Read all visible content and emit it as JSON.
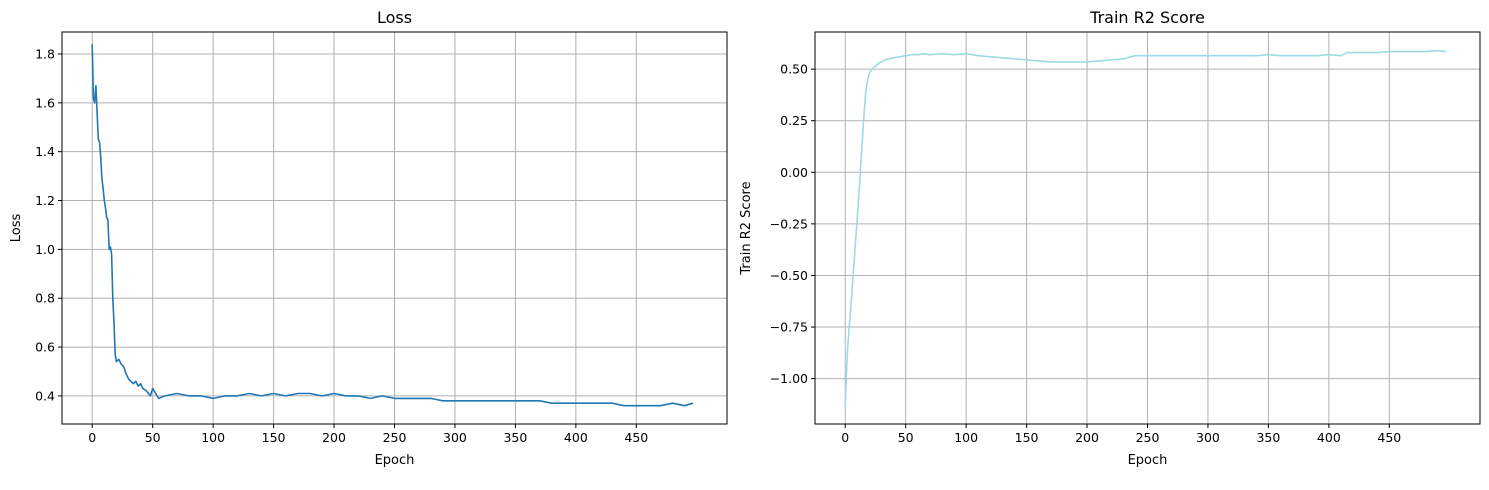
{
  "chart_data": [
    {
      "type": "line",
      "title": "Loss",
      "xlabel": "Epoch",
      "ylabel": "Loss",
      "xlim": [
        -25,
        525
      ],
      "ylim": [
        0.285,
        1.89
      ],
      "xticks": [
        0,
        50,
        100,
        150,
        200,
        250,
        300,
        350,
        400,
        450
      ],
      "yticks": [
        0.4,
        0.6,
        0.8,
        1.0,
        1.2,
        1.4,
        1.6,
        1.8
      ],
      "grid": true,
      "color": "#1f77b4",
      "series": [
        {
          "x": [
            0,
            1,
            2,
            3,
            4,
            5,
            6,
            7,
            8,
            9,
            10,
            11,
            12,
            13,
            14,
            15,
            16,
            17,
            18,
            19,
            20,
            22,
            24,
            26,
            28,
            30,
            32,
            34,
            36,
            38,
            40,
            42,
            45,
            48,
            50,
            55,
            60,
            70,
            80,
            90,
            100,
            110,
            120,
            130,
            140,
            150,
            160,
            170,
            180,
            190,
            200,
            210,
            220,
            230,
            240,
            250,
            260,
            270,
            280,
            290,
            300,
            310,
            320,
            330,
            340,
            350,
            360,
            370,
            380,
            390,
            400,
            410,
            420,
            430,
            440,
            450,
            460,
            470,
            480,
            490,
            497
          ],
          "y": [
            1.84,
            1.62,
            1.6,
            1.67,
            1.56,
            1.45,
            1.44,
            1.38,
            1.29,
            1.25,
            1.2,
            1.17,
            1.13,
            1.12,
            1.0,
            1.01,
            0.98,
            0.8,
            0.7,
            0.57,
            0.54,
            0.55,
            0.53,
            0.52,
            0.49,
            0.47,
            0.46,
            0.45,
            0.46,
            0.44,
            0.45,
            0.43,
            0.42,
            0.4,
            0.43,
            0.39,
            0.4,
            0.41,
            0.4,
            0.4,
            0.39,
            0.4,
            0.4,
            0.41,
            0.4,
            0.41,
            0.4,
            0.41,
            0.41,
            0.4,
            0.41,
            0.4,
            0.4,
            0.39,
            0.4,
            0.39,
            0.39,
            0.39,
            0.39,
            0.38,
            0.38,
            0.38,
            0.38,
            0.38,
            0.38,
            0.38,
            0.38,
            0.38,
            0.37,
            0.37,
            0.37,
            0.37,
            0.37,
            0.37,
            0.36,
            0.36,
            0.36,
            0.36,
            0.37,
            0.36,
            0.37
          ]
        }
      ]
    },
    {
      "type": "line",
      "title": "Train R2 Score",
      "xlabel": "Epoch",
      "ylabel": "Train R2 Score",
      "xlim": [
        -25,
        525
      ],
      "ylim": [
        -1.22,
        0.68
      ],
      "xticks": [
        0,
        50,
        100,
        150,
        200,
        250,
        300,
        350,
        400,
        450
      ],
      "yticks": [
        -1.0,
        -0.75,
        -0.5,
        -0.25,
        0.0,
        0.25,
        0.5
      ],
      "grid": true,
      "color": "#9edae5",
      "series": [
        {
          "x": [
            0,
            1,
            2,
            3,
            4,
            5,
            6,
            7,
            8,
            9,
            10,
            11,
            12,
            13,
            14,
            15,
            16,
            17,
            18,
            19,
            20,
            22,
            24,
            26,
            28,
            30,
            33,
            36,
            40,
            45,
            50,
            55,
            60,
            65,
            70,
            80,
            90,
            100,
            110,
            120,
            130,
            140,
            150,
            160,
            170,
            180,
            190,
            200,
            210,
            220,
            230,
            240,
            250,
            260,
            270,
            280,
            290,
            300,
            310,
            320,
            330,
            340,
            350,
            360,
            370,
            380,
            390,
            400,
            410,
            415,
            420,
            430,
            440,
            450,
            460,
            470,
            480,
            490,
            497
          ],
          "y": [
            -1.14,
            -0.98,
            -0.85,
            -0.77,
            -0.7,
            -0.62,
            -0.54,
            -0.46,
            -0.38,
            -0.3,
            -0.22,
            -0.13,
            -0.05,
            0.05,
            0.14,
            0.24,
            0.32,
            0.39,
            0.43,
            0.46,
            0.48,
            0.5,
            0.51,
            0.52,
            0.53,
            0.535,
            0.545,
            0.55,
            0.555,
            0.56,
            0.565,
            0.57,
            0.57,
            0.575,
            0.57,
            0.575,
            0.57,
            0.575,
            0.565,
            0.56,
            0.555,
            0.55,
            0.545,
            0.54,
            0.535,
            0.535,
            0.535,
            0.535,
            0.54,
            0.545,
            0.55,
            0.565,
            0.565,
            0.565,
            0.565,
            0.565,
            0.565,
            0.565,
            0.565,
            0.565,
            0.565,
            0.565,
            0.57,
            0.565,
            0.565,
            0.565,
            0.565,
            0.57,
            0.565,
            0.58,
            0.58,
            0.58,
            0.58,
            0.585,
            0.585,
            0.585,
            0.585,
            0.59,
            0.585
          ]
        }
      ]
    }
  ]
}
